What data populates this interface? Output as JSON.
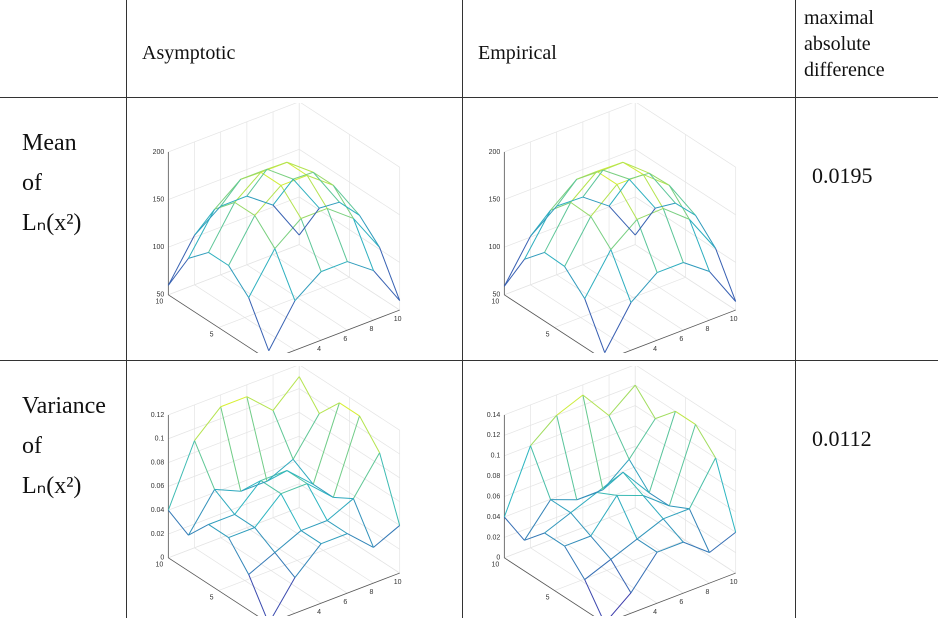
{
  "table": {
    "header": [
      "Asymptotic",
      "Empirical",
      [
        "maximal",
        "absolute",
        "difference"
      ]
    ],
    "rows": [
      {
        "label": [
          "Mean",
          "of",
          "Lₙ(x²)"
        ],
        "asymptotic": {
          "xlim": [
            0,
            10
          ],
          "ylim": [
            0,
            10
          ],
          "zlim": [
            50,
            200
          ],
          "xticks": [
            0,
            2,
            4,
            6,
            8,
            10
          ],
          "yticks": [
            0,
            5,
            10
          ],
          "zticks": [
            50,
            100,
            150,
            200
          ],
          "x": [
            0,
            2,
            4,
            6,
            8,
            10
          ],
          "y": [
            0,
            2,
            4,
            6,
            8,
            10
          ],
          "z": [
            [
              60,
              102,
              122,
              122,
              102,
              60
            ],
            [
              102,
              143,
              164,
              164,
              143,
              102
            ],
            [
              122,
              164,
              185,
              185,
              164,
              122
            ],
            [
              122,
              164,
              185,
              185,
              164,
              122
            ],
            [
              102,
              143,
              164,
              164,
              143,
              102
            ],
            [
              60,
              102,
              122,
              122,
              102,
              60
            ]
          ]
        },
        "empirical": {
          "xlim": [
            0,
            10
          ],
          "ylim": [
            0,
            10
          ],
          "zlim": [
            50,
            200
          ],
          "xticks": [
            0,
            2,
            4,
            6,
            8,
            10
          ],
          "yticks": [
            0,
            5,
            10
          ],
          "zticks": [
            50,
            100,
            150,
            200
          ],
          "x": [
            0,
            2,
            4,
            6,
            8,
            10
          ],
          "y": [
            0,
            2,
            4,
            6,
            8,
            10
          ],
          "z": [
            [
              58,
              100,
              121,
              121,
              101,
              59
            ],
            [
              101,
              142,
              163,
              164,
              142,
              101
            ],
            [
              121,
              163,
              186,
              186,
              164,
              122
            ],
            [
              122,
              164,
              186,
              185,
              163,
              121
            ],
            [
              101,
              142,
              164,
              163,
              143,
              102
            ],
            [
              59,
              101,
              122,
              121,
              101,
              60
            ]
          ]
        },
        "difference": 0.0195
      },
      {
        "label": [
          "Variance",
          "of",
          "Lₙ(x²)"
        ],
        "asymptotic": {
          "xlim": [
            0,
            10
          ],
          "ylim": [
            0,
            10
          ],
          "zlim": [
            0,
            0.12
          ],
          "xticks": [
            0,
            2,
            4,
            6,
            8,
            10
          ],
          "yticks": [
            0,
            5,
            10
          ],
          "zticks": [
            0,
            0.02,
            0.04,
            0.06,
            0.08,
            0.1,
            0.12
          ],
          "x": [
            0,
            2,
            4,
            6,
            8,
            10
          ],
          "y": [
            0,
            2,
            4,
            6,
            8,
            10
          ],
          "z": [
            [
              0.0,
              0.03,
              0.05,
              0.05,
              0.03,
              0.04
            ],
            [
              0.03,
              0.04,
              0.05,
              0.05,
              0.06,
              0.09
            ],
            [
              0.05,
              0.05,
              0.07,
              0.07,
              0.05,
              0.11
            ],
            [
              0.05,
              0.05,
              0.07,
              0.07,
              0.05,
              0.11
            ],
            [
              0.03,
              0.06,
              0.05,
              0.05,
              0.06,
              0.09
            ],
            [
              0.04,
              0.09,
              0.11,
              0.11,
              0.09,
              0.11
            ]
          ]
        },
        "empirical": {
          "xlim": [
            0,
            10
          ],
          "ylim": [
            0,
            10
          ],
          "zlim": [
            0,
            0.14
          ],
          "xticks": [
            0,
            2,
            4,
            6,
            8,
            10
          ],
          "yticks": [
            0,
            5,
            10
          ],
          "zticks": [
            0,
            0.02,
            0.04,
            0.06,
            0.08,
            0.1,
            0.12,
            0.14
          ],
          "x": [
            0,
            2,
            4,
            6,
            8,
            10
          ],
          "y": [
            0,
            2,
            4,
            6,
            8,
            10
          ],
          "z": [
            [
              0.0,
              0.02,
              0.05,
              0.05,
              0.03,
              0.04
            ],
            [
              0.03,
              0.04,
              0.05,
              0.06,
              0.06,
              0.1
            ],
            [
              0.05,
              0.05,
              0.08,
              0.07,
              0.05,
              0.12
            ],
            [
              0.05,
              0.06,
              0.07,
              0.08,
              0.05,
              0.12
            ],
            [
              0.03,
              0.06,
              0.05,
              0.05,
              0.07,
              0.1
            ],
            [
              0.04,
              0.1,
              0.12,
              0.13,
              0.1,
              0.12
            ]
          ]
        },
        "difference": 0.0112
      }
    ]
  }
}
